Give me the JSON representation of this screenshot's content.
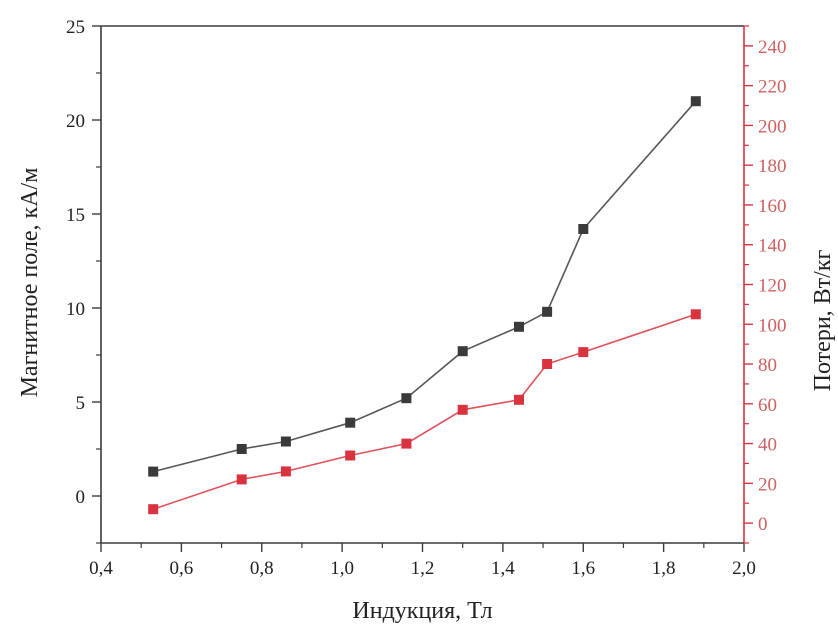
{
  "chart_data": {
    "type": "line",
    "xlabel": "Индукция, Тл",
    "ylabel_left": "Магнитное поле, кА/м",
    "ylabel_right": "Потери, Вт/кг",
    "xlim": [
      0.4,
      2.0
    ],
    "ylim_left": [
      -2.5,
      25
    ],
    "ylim_right": [
      -10,
      250
    ],
    "x_ticks": [
      {
        "v": 0.4,
        "label": "0,4"
      },
      {
        "v": 0.6,
        "label": "0,6"
      },
      {
        "v": 0.8,
        "label": "0,8"
      },
      {
        "v": 1.0,
        "label": "1,0"
      },
      {
        "v": 1.2,
        "label": "1,2"
      },
      {
        "v": 1.4,
        "label": "1,4"
      },
      {
        "v": 1.6,
        "label": "1,6"
      },
      {
        "v": 1.8,
        "label": "1,8"
      },
      {
        "v": 2.0,
        "label": "2,0"
      }
    ],
    "y_left_ticks": [
      {
        "v": 0,
        "label": "0"
      },
      {
        "v": 5,
        "label": "5"
      },
      {
        "v": 10,
        "label": "10"
      },
      {
        "v": 15,
        "label": "15"
      },
      {
        "v": 20,
        "label": "20"
      },
      {
        "v": 25,
        "label": "25"
      }
    ],
    "y_right_ticks": [
      {
        "v": 0,
        "label": "0"
      },
      {
        "v": 20,
        "label": "20"
      },
      {
        "v": 40,
        "label": "40"
      },
      {
        "v": 60,
        "label": "60"
      },
      {
        "v": 80,
        "label": "80"
      },
      {
        "v": 100,
        "label": "100"
      },
      {
        "v": 120,
        "label": "120"
      },
      {
        "v": 140,
        "label": "140"
      },
      {
        "v": 160,
        "label": "160"
      },
      {
        "v": 180,
        "label": "180"
      },
      {
        "v": 200,
        "label": "200"
      },
      {
        "v": 220,
        "label": "220"
      },
      {
        "v": 240,
        "label": "240"
      }
    ],
    "series": [
      {
        "axis": "left",
        "color": "#3a3a3a",
        "x": [
          0.53,
          0.75,
          0.86,
          1.02,
          1.16,
          1.3,
          1.44,
          1.51,
          1.6,
          1.88
        ],
        "y": [
          1.3,
          2.5,
          2.9,
          3.9,
          5.2,
          7.7,
          9.0,
          9.8,
          14.2,
          21.0
        ]
      },
      {
        "axis": "right",
        "color": "#d9333f",
        "x": [
          0.53,
          0.75,
          0.86,
          1.02,
          1.16,
          1.3,
          1.44,
          1.51,
          1.6,
          1.88
        ],
        "y": [
          7,
          22,
          26,
          34,
          40,
          57,
          62,
          80,
          86,
          105
        ]
      }
    ],
    "grid": false
  }
}
